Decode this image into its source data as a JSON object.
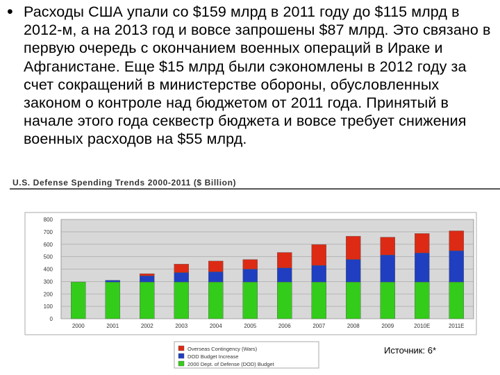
{
  "slide": {
    "bullet": "•",
    "text": "Расходы США упали со $159 млрд в 2011 году до $115 млрд в 2012-м, а на 2013 год и вовсе запрошены $87 млрд. Это связано в первую очередь с окончанием военных операций в Ираке и Афганистане. Еще $15 млрд были сэкономлены в 2012 году за счет сокращений в министерстве обороны, обусловленных законом о контроле над бюджетом от 2011 года. Принятый в начале этого года секвестр бюджета и вовсе требует снижения военных расходов на $55 млрд.",
    "source": "Источник: 6*"
  },
  "chart_data": {
    "type": "bar",
    "stacked": true,
    "title": "U.S. Defense Spending Trends 2000-2011 ($ Billion)",
    "categories": [
      "2000",
      "2001",
      "2002",
      "2003",
      "2004",
      "2005",
      "2006",
      "2007",
      "2008",
      "2009",
      "2010E",
      "2011E"
    ],
    "series": [
      {
        "name": "2000 Dept. of Defense (DOD) Budget",
        "color": "#33cc1a",
        "values": [
          296,
          296,
          296,
          296,
          296,
          296,
          296,
          296,
          296,
          296,
          296,
          296
        ]
      },
      {
        "name": "DOD Budget Increase",
        "color": "#1f3fc0",
        "values": [
          0,
          14,
          50,
          76,
          82,
          104,
          114,
          134,
          182,
          218,
          234,
          252
        ]
      },
      {
        "name": "Overseas Contingency (Wars)",
        "color": "#dd2a14",
        "values": [
          0,
          0,
          17,
          68,
          87,
          77,
          124,
          168,
          187,
          143,
          157,
          160
        ]
      }
    ],
    "yticks": [
      0,
      100,
      200,
      300,
      400,
      500,
      600,
      700,
      800
    ],
    "ylim": [
      0,
      800
    ],
    "grid": true,
    "legend_position": "bottom-left"
  }
}
